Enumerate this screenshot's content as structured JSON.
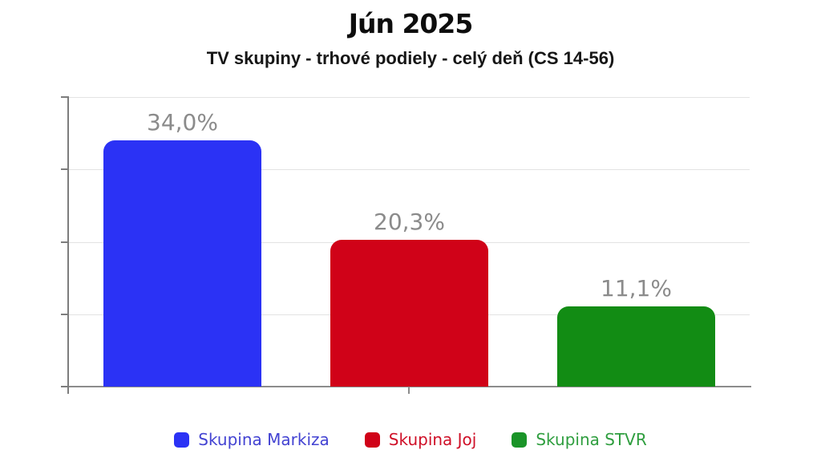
{
  "chart": {
    "title": "Jún 2025",
    "subtitle": "TV skupiny - trhové podiely - celý deň (CS 14-56)"
  },
  "chart_data": {
    "type": "bar",
    "title": "Jún 2025",
    "subtitle": "TV skupiny - trhové podiely - celý deň (CS 14-56)",
    "categories": [
      "Skupina Markiza",
      "Skupina Joj",
      "Skupina STVR"
    ],
    "values": [
      34.0,
      20.3,
      11.1
    ],
    "value_labels": [
      "34,0%",
      "20,3%",
      "11,1%"
    ],
    "bar_colors": [
      "#2b32f5",
      "#d00218",
      "#128c14"
    ],
    "ylim": [
      0,
      40
    ],
    "grid_step": 10,
    "grid": true,
    "y_axis_labels_visible": false,
    "legend_position": "bottom",
    "value_label_color": "#8b8b8b"
  },
  "legend": {
    "items": [
      {
        "label": "Skupina Markiza",
        "color": "#2b32f5",
        "text_color": "#4343d2"
      },
      {
        "label": "Skupina Joj",
        "color": "#d00218",
        "text_color": "#cf1028"
      },
      {
        "label": "Skupina STVR",
        "color": "#1a9428",
        "text_color": "#2f9e3f"
      }
    ]
  }
}
